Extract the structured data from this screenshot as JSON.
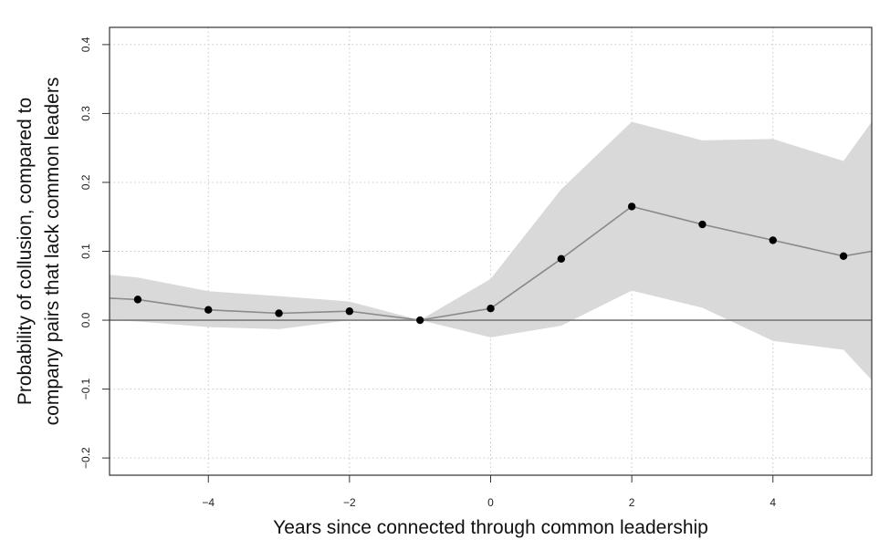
{
  "chart_data": {
    "type": "line",
    "xlabel": "Years since connected through common leadership",
    "ylabel_line1": "Probability of collusion, compared to",
    "ylabel_line2": "company pairs that lack common leaders",
    "xlim": [
      -5.4,
      5.4
    ],
    "ylim": [
      -0.225,
      0.425
    ],
    "x_ticks": [
      -4,
      -2,
      0,
      2,
      4
    ],
    "y_ticks": [
      -0.2,
      -0.1,
      0.0,
      0.1,
      0.2,
      0.3,
      0.4
    ],
    "x_tick_labels": [
      "−4",
      "−2",
      "0",
      "2",
      "4"
    ],
    "y_tick_labels": [
      "−0.2",
      "−0.1",
      "0.0",
      "0.1",
      "0.2",
      "0.3",
      "0.4"
    ],
    "grid": true,
    "reference_line_y": 0,
    "series": [
      {
        "x": [
          -5,
          -4,
          -3,
          -2,
          -1,
          0,
          1,
          2,
          3,
          4,
          5
        ],
        "y": [
          0.03,
          0.015,
          0.01,
          0.013,
          0.0,
          0.017,
          0.089,
          0.165,
          0.139,
          0.116,
          0.093
        ]
      }
    ],
    "line_extension": {
      "x": [
        -5.4,
        5.4
      ],
      "y": [
        0.032,
        0.1
      ]
    },
    "confidence_band": {
      "x": [
        -5.4,
        -5,
        -4,
        -3,
        -2,
        -1,
        0,
        1,
        2,
        3,
        4,
        5,
        5.4
      ],
      "upper": [
        0.066,
        0.062,
        0.042,
        0.035,
        0.027,
        0.0,
        0.06,
        0.19,
        0.288,
        0.261,
        0.263,
        0.231,
        0.288
      ],
      "lower": [
        0.0,
        -0.002,
        -0.01,
        -0.013,
        0.0,
        0.0,
        -0.025,
        -0.008,
        0.043,
        0.018,
        -0.03,
        -0.043,
        -0.087
      ]
    },
    "colors": {
      "band": "#d9d9d9",
      "line": "#8a8a8a",
      "point": "#000000",
      "grid": "#c8c8c8",
      "axis": "#333333"
    }
  }
}
